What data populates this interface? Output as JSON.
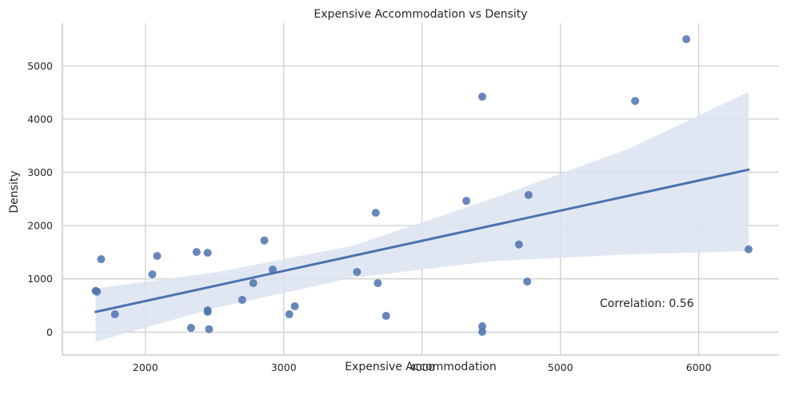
{
  "chart_data": {
    "type": "scatter",
    "title": "Expensive Accommodation vs Density",
    "xlabel": "Expensive Accommodation",
    "ylabel": "Density",
    "xlim": [
      1400,
      6580
    ],
    "ylim": [
      -430,
      5800
    ],
    "xticks": [
      2000,
      3000,
      4000,
      5000,
      6000
    ],
    "yticks": [
      0,
      1000,
      2000,
      3000,
      4000,
      5000
    ],
    "grid": true,
    "points": [
      {
        "x": 1640,
        "y": 775
      },
      {
        "x": 1650,
        "y": 760
      },
      {
        "x": 1680,
        "y": 1370
      },
      {
        "x": 1780,
        "y": 335
      },
      {
        "x": 2050,
        "y": 1085
      },
      {
        "x": 2085,
        "y": 1430
      },
      {
        "x": 2330,
        "y": 80
      },
      {
        "x": 2370,
        "y": 1505
      },
      {
        "x": 2450,
        "y": 1490
      },
      {
        "x": 2450,
        "y": 410
      },
      {
        "x": 2450,
        "y": 380
      },
      {
        "x": 2460,
        "y": 55
      },
      {
        "x": 2700,
        "y": 605
      },
      {
        "x": 2780,
        "y": 920
      },
      {
        "x": 2860,
        "y": 1720
      },
      {
        "x": 2920,
        "y": 1175
      },
      {
        "x": 3040,
        "y": 335
      },
      {
        "x": 3080,
        "y": 485
      },
      {
        "x": 3530,
        "y": 1130
      },
      {
        "x": 3665,
        "y": 2240
      },
      {
        "x": 3680,
        "y": 920
      },
      {
        "x": 3740,
        "y": 305
      },
      {
        "x": 4320,
        "y": 2465
      },
      {
        "x": 4435,
        "y": 4420
      },
      {
        "x": 4435,
        "y": 110
      },
      {
        "x": 4435,
        "y": 5
      },
      {
        "x": 4700,
        "y": 1645
      },
      {
        "x": 4760,
        "y": 950
      },
      {
        "x": 4770,
        "y": 2575
      },
      {
        "x": 5540,
        "y": 4340
      },
      {
        "x": 5910,
        "y": 5500
      },
      {
        "x": 6360,
        "y": 1555
      }
    ],
    "regression": {
      "x": [
        1640,
        6360
      ],
      "y": [
        380,
        3050
      ]
    },
    "confidence_band": {
      "x": [
        1640,
        2500,
        3500,
        4500,
        5500,
        6360
      ],
      "upper": [
        820,
        1120,
        1620,
        2500,
        3450,
        4510
      ],
      "lower": [
        -180,
        450,
        1020,
        1330,
        1460,
        1520
      ]
    },
    "colors": {
      "points": "#4c72b0",
      "line": "#4c72b0",
      "band": "#dce3f0"
    },
    "annotation": "Correlation: 0.56"
  }
}
